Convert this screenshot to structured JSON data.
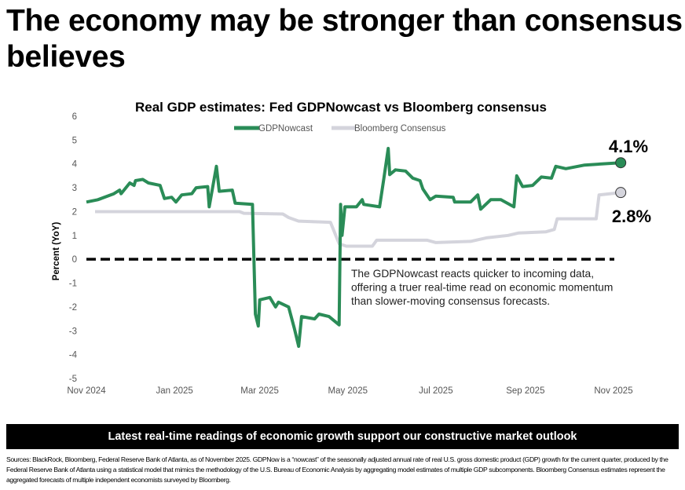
{
  "headline": "The economy may be stronger than consensus believes",
  "banner": "Latest real-time readings of economic growth support our constructive market outlook",
  "footnote": "Sources: BlackRock, Bloomberg, Federal Reserve Bank of Atlanta, as of November 2025. GDPNow is a “nowcast” of the seasonally adjusted annual rate of real U.S. gross domestic product (GDP) growth for the current quarter, produced by the Federal Reserve Bank of Atlanta using a statistical model that mimics the methodology of the U.S. Bureau of Economic Analysis by aggregating model estimates of multiple GDP subcomponents. Bloomberg Consensus estimates represent the aggregated forecasts of multiple independent economists surveyed by Bloomberg.",
  "chart_data": {
    "type": "line",
    "title": "Real GDP estimates: Fed GDPNowcast vs Bloomberg consensus",
    "xlabel": "",
    "ylabel": "Percent (YoY)",
    "ylim": [
      -5,
      6
    ],
    "yticks": [
      "6",
      "5",
      "4",
      "3",
      "2",
      "1",
      "0",
      "-1",
      "-2",
      "-3",
      "-4",
      "-5"
    ],
    "xlim": [
      "2024-11-01",
      "2025-11-01"
    ],
    "xticks": [
      {
        "date": "2024-11-01",
        "label": "Nov 2024"
      },
      {
        "date": "2025-01-01",
        "label": "Jan 2025"
      },
      {
        "date": "2025-03-01",
        "label": "Mar 2025"
      },
      {
        "date": "2025-05-01",
        "label": "May 2025"
      },
      {
        "date": "2025-07-01",
        "label": "Jul 2025"
      },
      {
        "date": "2025-09-01",
        "label": "Sep 2025"
      },
      {
        "date": "2025-11-01",
        "label": "Nov 2025"
      }
    ],
    "grid": false,
    "legend": "top",
    "reference_line": {
      "y": 0,
      "style": "dashed",
      "color": "#000000"
    },
    "annotation": [
      "The GDPNowcast reacts quicker to incoming data,",
      "offering a truer real-time read on economic momentum",
      "than slower-moving consensus forecasts."
    ],
    "series": [
      {
        "name": "GDPNowcast",
        "color": "#2a8c57",
        "end_label": "4.1%",
        "points": [
          [
            "2024-11-01",
            2.4
          ],
          [
            "2024-11-09",
            2.5
          ],
          [
            "2024-11-20",
            2.75
          ],
          [
            "2024-11-24",
            2.9
          ],
          [
            "2024-11-25",
            2.75
          ],
          [
            "2024-12-01",
            3.2
          ],
          [
            "2024-12-04",
            3.1
          ],
          [
            "2024-12-05",
            3.3
          ],
          [
            "2024-12-10",
            3.35
          ],
          [
            "2024-12-14",
            3.2
          ],
          [
            "2024-12-22",
            3.1
          ],
          [
            "2024-12-25",
            2.55
          ],
          [
            "2024-12-30",
            2.6
          ],
          [
            "2025-01-02",
            2.4
          ],
          [
            "2025-01-06",
            2.7
          ],
          [
            "2025-01-13",
            2.75
          ],
          [
            "2025-01-16",
            3.0
          ],
          [
            "2025-01-24",
            3.05
          ],
          [
            "2025-01-25",
            2.2
          ],
          [
            "2025-01-30",
            3.9
          ],
          [
            "2025-02-01",
            2.85
          ],
          [
            "2025-02-10",
            2.9
          ],
          [
            "2025-02-12",
            2.35
          ],
          [
            "2025-02-24",
            2.3
          ],
          [
            "2025-02-26",
            -2.3
          ],
          [
            "2025-02-28",
            -2.8
          ],
          [
            "2025-03-01",
            -1.7
          ],
          [
            "2025-03-08",
            -1.6
          ],
          [
            "2025-03-12",
            -2.0
          ],
          [
            "2025-03-14",
            -1.8
          ],
          [
            "2025-03-21",
            -2.0
          ],
          [
            "2025-03-25",
            -2.9
          ],
          [
            "2025-03-28",
            -3.65
          ],
          [
            "2025-03-30",
            -2.4
          ],
          [
            "2025-04-08",
            -2.5
          ],
          [
            "2025-04-11",
            -2.3
          ],
          [
            "2025-04-18",
            -2.4
          ],
          [
            "2025-04-25",
            -2.75
          ],
          [
            "2025-04-26",
            2.3
          ],
          [
            "2025-04-27",
            1.0
          ],
          [
            "2025-04-29",
            2.2
          ],
          [
            "2025-05-07",
            2.2
          ],
          [
            "2025-05-11",
            2.5
          ],
          [
            "2025-05-12",
            2.3
          ],
          [
            "2025-05-23",
            2.2
          ],
          [
            "2025-05-26",
            3.4
          ],
          [
            "2025-05-29",
            4.65
          ],
          [
            "2025-05-30",
            3.55
          ],
          [
            "2025-06-03",
            3.75
          ],
          [
            "2025-06-10",
            3.7
          ],
          [
            "2025-06-15",
            3.4
          ],
          [
            "2025-06-20",
            3.3
          ],
          [
            "2025-06-22",
            2.95
          ],
          [
            "2025-06-27",
            2.5
          ],
          [
            "2025-07-01",
            2.65
          ],
          [
            "2025-07-13",
            2.6
          ],
          [
            "2025-07-14",
            2.4
          ],
          [
            "2025-07-25",
            2.4
          ],
          [
            "2025-07-30",
            2.7
          ],
          [
            "2025-08-01",
            2.1
          ],
          [
            "2025-08-08",
            2.5
          ],
          [
            "2025-08-15",
            2.5
          ],
          [
            "2025-08-24",
            2.2
          ],
          [
            "2025-08-26",
            3.5
          ],
          [
            "2025-08-30",
            3.05
          ],
          [
            "2025-09-06",
            3.1
          ],
          [
            "2025-09-12",
            3.45
          ],
          [
            "2025-09-19",
            3.4
          ],
          [
            "2025-09-22",
            3.9
          ],
          [
            "2025-09-29",
            3.8
          ],
          [
            "2025-10-12",
            3.95
          ],
          [
            "2025-11-06",
            4.05
          ]
        ]
      },
      {
        "name": "Bloomberg Consensus",
        "color": "#d4d4dc",
        "end_label": "2.8%",
        "points": [
          [
            "2024-11-07",
            2.0
          ],
          [
            "2025-02-15",
            2.0
          ],
          [
            "2025-02-18",
            1.93
          ],
          [
            "2025-03-17",
            1.9
          ],
          [
            "2025-03-21",
            1.75
          ],
          [
            "2025-03-28",
            1.6
          ],
          [
            "2025-04-19",
            1.55
          ],
          [
            "2025-04-25",
            0.65
          ],
          [
            "2025-04-30",
            0.55
          ],
          [
            "2025-05-18",
            0.55
          ],
          [
            "2025-05-21",
            0.8
          ],
          [
            "2025-06-25",
            0.8
          ],
          [
            "2025-07-01",
            0.7
          ],
          [
            "2025-07-25",
            0.75
          ],
          [
            "2025-08-05",
            0.9
          ],
          [
            "2025-08-20",
            1.0
          ],
          [
            "2025-08-27",
            1.1
          ],
          [
            "2025-09-15",
            1.15
          ],
          [
            "2025-09-21",
            1.25
          ],
          [
            "2025-09-23",
            1.7
          ],
          [
            "2025-10-20",
            1.7
          ],
          [
            "2025-10-22",
            2.7
          ],
          [
            "2025-11-06",
            2.8
          ]
        ]
      }
    ]
  }
}
